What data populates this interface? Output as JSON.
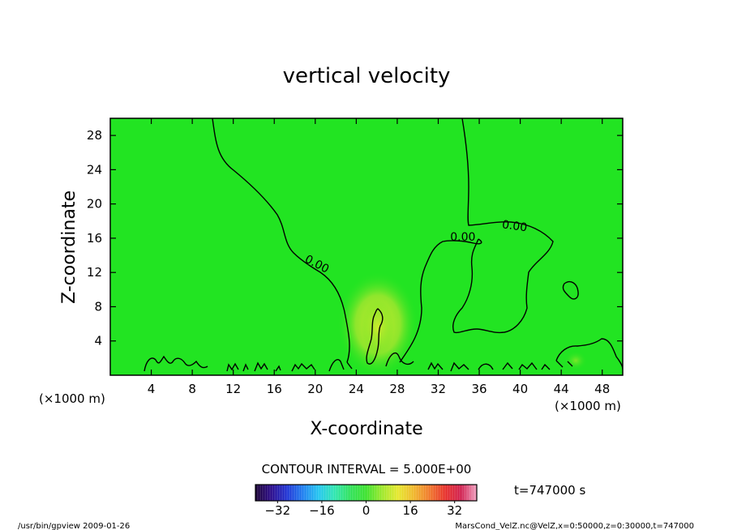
{
  "chart_data": {
    "type": "heatmap",
    "title": "vertical velocity",
    "xlabel": "X-coordinate",
    "ylabel": "Z-coordinate",
    "x_unit_left": "(×1000 m)",
    "x_unit_right": "(×1000 m)",
    "xlim": [
      0,
      50
    ],
    "ylim": [
      0,
      30
    ],
    "x_ticks": [
      4,
      8,
      12,
      16,
      20,
      24,
      28,
      32,
      36,
      40,
      44,
      48
    ],
    "y_ticks": [
      4,
      8,
      12,
      16,
      20,
      24,
      28
    ],
    "field_color": "#22e422",
    "contour_labels": [
      {
        "text": "0.00",
        "x": 20,
        "y": 12.6
      },
      {
        "text": "0.00",
        "x": 34.4,
        "y": 15.7
      },
      {
        "text": "0.00",
        "x": 39.4,
        "y": 17.0
      }
    ],
    "contour_interval_text": "CONTOUR INTERVAL = 5.000E+00",
    "colorbar": {
      "min": -40,
      "max": 40,
      "ticks": [
        -32,
        -16,
        0,
        16,
        32
      ],
      "colors": [
        "#1a0033",
        "#2a0a8a",
        "#1f33d6",
        "#1e7ef0",
        "#22c6f0",
        "#2ee6b0",
        "#2fe25a",
        "#3be22c",
        "#9ce82a",
        "#e6e82c",
        "#f0b72a",
        "#f0782a",
        "#e8302a",
        "#d02050",
        "#f0a0c0"
      ]
    },
    "time_label": "t=747000  s"
  },
  "footer": {
    "left": "/usr/bin/gpview   2009-01-26",
    "right": "MarsCond_VelZ.nc@VelZ,x=0:50000,z=0:30000,t=747000"
  }
}
